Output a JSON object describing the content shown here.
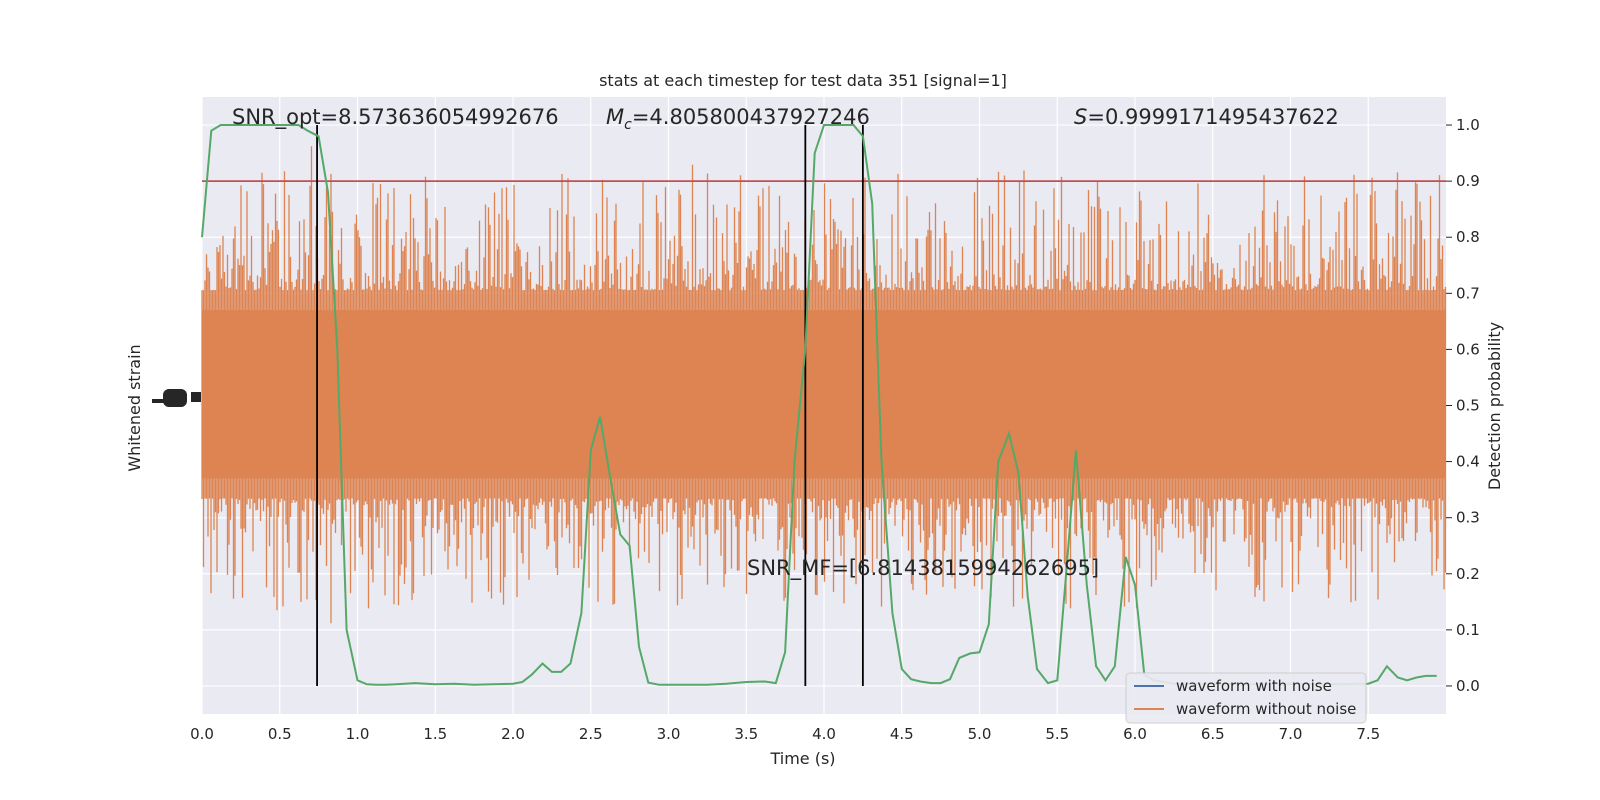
{
  "chart_data": {
    "type": "line",
    "title": "stats at each timestep for test data 351 [signal=1]",
    "xlabel": "Time (s)",
    "ylabel_left": "Whitened strain",
    "ylabel_right": "Detection probability",
    "xlim": [
      0.0,
      8.0
    ],
    "ylim_right": [
      -0.05,
      1.05
    ],
    "grid": true,
    "x_ticks": [
      "0.0",
      "0.5",
      "1.0",
      "1.5",
      "2.0",
      "2.5",
      "3.0",
      "3.5",
      "4.0",
      "4.5",
      "5.0",
      "5.5",
      "6.0",
      "6.5",
      "7.0",
      "7.5"
    ],
    "x_tick_values": [
      0.0,
      0.5,
      1.0,
      1.5,
      2.0,
      2.5,
      3.0,
      3.5,
      4.0,
      4.5,
      5.0,
      5.5,
      6.0,
      6.5,
      7.0,
      7.5
    ],
    "y_right_ticks": [
      "0.0",
      "0.1",
      "0.2",
      "0.3",
      "0.4",
      "0.5",
      "0.6",
      "0.7",
      "0.8",
      "0.9",
      "1.0"
    ],
    "y_right_tick_values": [
      0.0,
      0.1,
      0.2,
      0.3,
      0.4,
      0.5,
      0.6,
      0.7,
      0.8,
      0.9,
      1.0
    ],
    "annotations": {
      "snr_opt": "SNR_opt=8.573636054992676",
      "mc_symbol": "M",
      "mc_sub": "c",
      "mc_value": "=4.805800437927246",
      "s_symbol": "S",
      "s_value": "=0.9999171495437622",
      "snr_mf": "SNR_MF=[6.814381599426269­5]"
    },
    "threshold": 0.9,
    "vertical_lines": [
      0.74,
      3.88,
      4.25
    ],
    "legend": {
      "placement": "lower-right",
      "entries": [
        {
          "label": "waveform with noise",
          "color": "#4c72b0"
        },
        {
          "label": "waveform without noise",
          "color": "#dd8452"
        }
      ]
    },
    "noise_band": {
      "color": "#dd8452",
      "center": 0.52,
      "core_halfwidth": 0.15
    },
    "series": [
      {
        "name": "Detection probability",
        "color": "#55a868",
        "x": [
          0.0,
          0.06,
          0.12,
          0.18,
          0.25,
          0.31,
          0.37,
          0.44,
          0.5,
          0.56,
          0.62,
          0.68,
          0.75,
          0.81,
          0.87,
          0.93,
          1.0,
          1.06,
          1.12,
          1.18,
          1.25,
          1.37,
          1.5,
          1.62,
          1.75,
          1.87,
          2.0,
          2.06,
          2.12,
          2.19,
          2.25,
          2.31,
          2.37,
          2.44,
          2.5,
          2.56,
          2.62,
          2.69,
          2.75,
          2.81,
          2.87,
          2.94,
          3.0,
          3.12,
          3.25,
          3.37,
          3.5,
          3.62,
          3.69,
          3.75,
          3.81,
          3.88,
          3.94,
          4.0,
          4.06,
          4.12,
          4.19,
          4.25,
          4.31,
          4.37,
          4.44,
          4.5,
          4.56,
          4.62,
          4.69,
          4.75,
          4.81,
          4.87,
          4.94,
          5.0,
          5.06,
          5.12,
          5.19,
          5.25,
          5.31,
          5.37,
          5.44,
          5.5,
          5.56,
          5.62,
          5.69,
          5.75,
          5.81,
          5.87,
          5.94,
          6.0,
          6.06,
          6.12,
          6.25,
          6.5,
          6.75,
          7.0,
          7.25,
          7.5,
          7.56,
          7.62,
          7.69,
          7.75,
          7.81,
          7.87,
          7.94
        ],
        "y": [
          0.8,
          0.99,
          1.0,
          1.0,
          1.0,
          1.0,
          1.0,
          1.0,
          1.0,
          1.0,
          1.0,
          0.99,
          0.98,
          0.88,
          0.6,
          0.1,
          0.01,
          0.003,
          0.002,
          0.002,
          0.003,
          0.005,
          0.003,
          0.004,
          0.002,
          0.003,
          0.004,
          0.007,
          0.02,
          0.04,
          0.025,
          0.025,
          0.04,
          0.13,
          0.42,
          0.48,
          0.38,
          0.27,
          0.25,
          0.07,
          0.006,
          0.002,
          0.002,
          0.002,
          0.002,
          0.004,
          0.007,
          0.008,
          0.005,
          0.06,
          0.4,
          0.6,
          0.95,
          1.0,
          1.0,
          1.0,
          1.0,
          0.98,
          0.86,
          0.4,
          0.13,
          0.03,
          0.012,
          0.008,
          0.005,
          0.005,
          0.012,
          0.05,
          0.058,
          0.06,
          0.11,
          0.4,
          0.45,
          0.38,
          0.16,
          0.03,
          0.005,
          0.01,
          0.21,
          0.42,
          0.18,
          0.035,
          0.01,
          0.035,
          0.23,
          0.18,
          0.02,
          0.01,
          0.004,
          0.004,
          0.003,
          0.004,
          0.003,
          0.004,
          0.01,
          0.035,
          0.015,
          0.01,
          0.015,
          0.018,
          0.018
        ]
      }
    ]
  }
}
